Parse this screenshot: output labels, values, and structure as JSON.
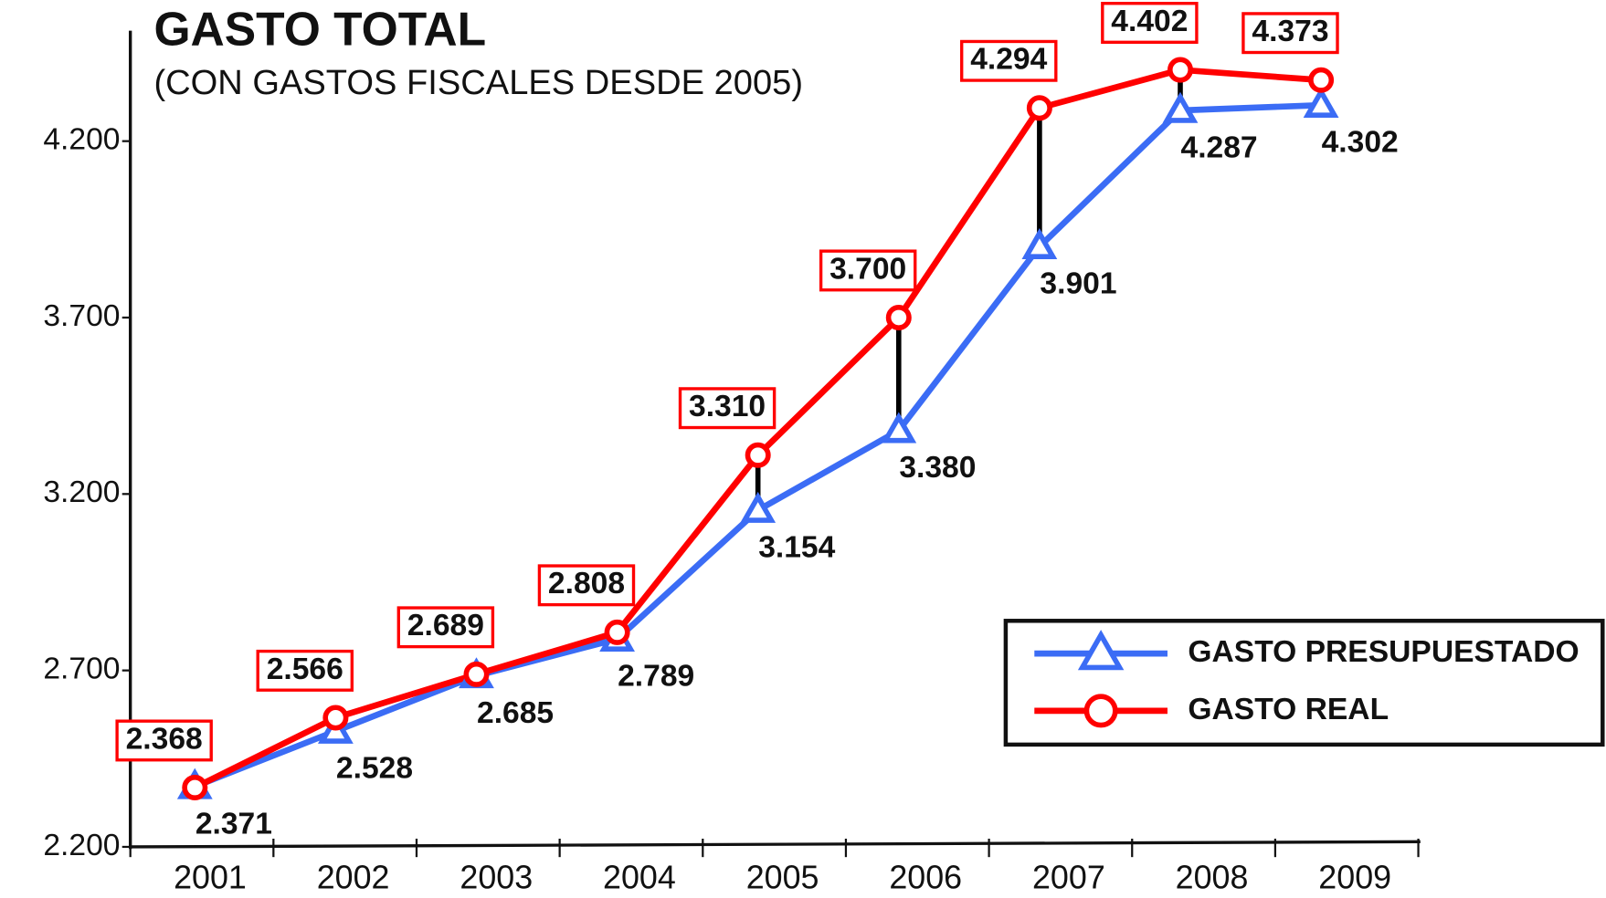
{
  "chart_data": {
    "type": "line",
    "title": "GASTO TOTAL",
    "subtitle": "(CON GASTOS FISCALES DESDE 2005)",
    "categories": [
      "2001",
      "2002",
      "2003",
      "2004",
      "2005",
      "2006",
      "2007",
      "2008",
      "2009"
    ],
    "series": [
      {
        "name": "GASTO PRESUPUESTADO",
        "color": "#3b6cf5",
        "marker": "triangle",
        "values": [
          2371,
          2528,
          2685,
          2789,
          3154,
          3380,
          3901,
          4287,
          4302
        ],
        "value_labels": [
          "2.371",
          "2.528",
          "2.685",
          "2.789",
          "3.154",
          "3.380",
          "3.901",
          "4.287",
          "4.302"
        ]
      },
      {
        "name": "GASTO REAL",
        "color": "#ff0000",
        "marker": "circle",
        "values": [
          2368,
          2566,
          2689,
          2808,
          3310,
          3700,
          4294,
          4402,
          4373
        ],
        "value_labels": [
          "2.368",
          "2.566",
          "2.689",
          "2.808",
          "3.310",
          "3.700",
          "4.294",
          "4.402",
          "4.373"
        ]
      }
    ],
    "ylim": [
      2200,
      4500
    ],
    "yticks": [
      {
        "value": 2200,
        "label": "2.200"
      },
      {
        "value": 2700,
        "label": "2.700"
      },
      {
        "value": 3200,
        "label": "3.200"
      },
      {
        "value": 3700,
        "label": "3.700"
      },
      {
        "value": 4200,
        "label": "4.200"
      }
    ],
    "grid": false,
    "legend": "lower right"
  }
}
